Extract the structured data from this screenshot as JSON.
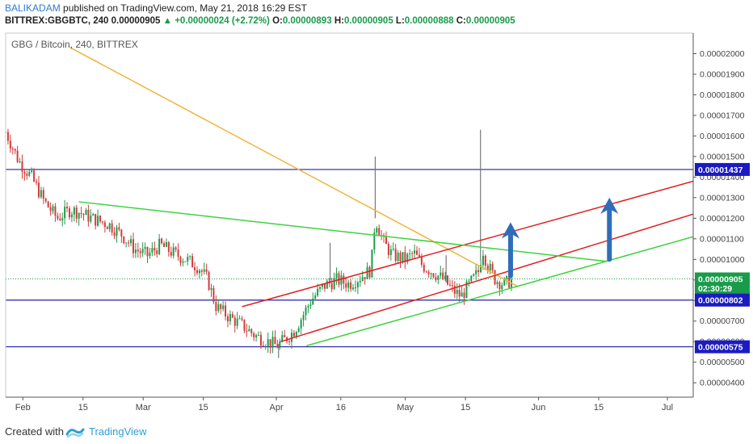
{
  "header": {
    "author": "BALIKADAM",
    "published": "published on TradingView.com, May 21, 2018 16:29 EST",
    "symbol": "BITTREX:GBGBTC, 240",
    "last": "0.00000905",
    "change": "+0.00000024 (+2.72%)",
    "o_label": "O:",
    "o_value": "0.00000893",
    "h_label": "H:",
    "h_value": "0.00000905",
    "l_label": "L:",
    "l_value": "0.00000888",
    "c_label": "C:",
    "c_value": "0.00000905"
  },
  "footer": {
    "created_with": "Created with",
    "brand": "TradingView"
  },
  "colors": {
    "up": "#1a9b4a",
    "down": "#d23c3c",
    "hline": "#1f1fa8",
    "orange": "#f0b33a",
    "red": "#e02020",
    "green": "#3fd23f",
    "arrow": "#2f6db8",
    "accent": "#2e7bcf"
  },
  "chart_data": {
    "type": "candlestick",
    "title": "GBG / Bitcoin, 240, BITTREX",
    "x_ticks": [
      "Feb",
      "15",
      "Mar",
      "15",
      "Apr",
      "16",
      "May",
      "15",
      "Jun",
      "15",
      "Jul"
    ],
    "x_tick_days": [
      0,
      14,
      28,
      42,
      59,
      74,
      89,
      103,
      120,
      134,
      150
    ],
    "x_range_days": [
      -4,
      156
    ],
    "y_ticks": [
      "0.00000400",
      "0.00000500",
      "0.00000600",
      "0.00000700",
      "0.00000800",
      "0.00000900",
      "0.00001000",
      "0.00001100",
      "0.00001200",
      "0.00001300",
      "0.00001400",
      "0.00001500",
      "0.00001600",
      "0.00001700",
      "0.00001800",
      "0.00001900",
      "0.00002000"
    ],
    "ylim": [
      3.3e-06,
      2.1e-05
    ],
    "price_markers": [
      {
        "label": "0.00001437",
        "value": 1.437e-05,
        "kind": "level"
      },
      {
        "label": "0.00000905",
        "value": 9.05e-06,
        "kind": "last"
      },
      {
        "label": "02:30:29",
        "value": 8.59e-06,
        "kind": "timer"
      },
      {
        "label": "0.00000802",
        "value": 8.02e-06,
        "kind": "level"
      },
      {
        "label": "0.00000575",
        "value": 5.75e-06,
        "kind": "level"
      }
    ],
    "horizontal_levels": [
      1.437e-05,
      8.02e-06,
      5.75e-06
    ],
    "last_price": 9.05e-06,
    "trendlines": [
      {
        "name": "descending resistance",
        "color": "orange",
        "x": [
          11,
          115
        ],
        "y": [
          2.03e-05,
          8.7e-06
        ]
      },
      {
        "name": "upper channel",
        "color": "red",
        "x": [
          51,
          156
        ],
        "y": [
          7.7e-06,
          1.38e-05
        ]
      },
      {
        "name": "lower channel",
        "color": "red",
        "x": [
          60,
          156
        ],
        "y": [
          6e-06,
          1.22e-05
        ]
      },
      {
        "name": "rising support",
        "color": "green",
        "x": [
          66,
          156
        ],
        "y": [
          5.8e-06,
          1.11e-05
        ]
      },
      {
        "name": "falling trend",
        "color": "green",
        "x": [
          13,
          136
        ],
        "y": [
          1.28e-05,
          9.9e-06
        ]
      }
    ],
    "arrows": [
      {
        "x": 113.5,
        "y_from": 9.2e-06,
        "y_to": 1.18e-05
      },
      {
        "x": 136.5,
        "y_from": 1e-05,
        "y_to": 1.3e-05
      }
    ],
    "price_path": [
      [
        -4,
        1.62e-05
      ],
      [
        -1,
        1.48e-05
      ],
      [
        2,
        1.4e-05
      ],
      [
        5,
        1.28e-05
      ],
      [
        8,
        1.2e-05
      ],
      [
        11,
        1.24e-05
      ],
      [
        13,
        1.23e-05
      ],
      [
        16,
        1.2e-05
      ],
      [
        20,
        1.17e-05
      ],
      [
        23,
        1.12e-05
      ],
      [
        26,
        1.05e-05
      ],
      [
        29,
        1.02e-05
      ],
      [
        32,
        1.07e-05
      ],
      [
        35,
        1.03e-05
      ],
      [
        38,
        1e-05
      ],
      [
        41,
        9.6e-06
      ],
      [
        43,
        9e-06
      ],
      [
        45,
        7.7e-06
      ],
      [
        48,
        7.2e-06
      ],
      [
        51,
        6.8e-06
      ],
      [
        54,
        6.3e-06
      ],
      [
        57,
        6e-06
      ],
      [
        59,
        5.8e-06
      ],
      [
        61,
        6.1e-06
      ],
      [
        63,
        6.5e-06
      ],
      [
        65,
        7.2e-06
      ],
      [
        67,
        8e-06
      ],
      [
        70,
        8.7e-06
      ],
      [
        73,
        9e-06
      ],
      [
        76,
        8.8e-06
      ],
      [
        79,
        9.2e-06
      ],
      [
        81,
        9.5e-06
      ],
      [
        82,
        1.2e-05
      ],
      [
        84,
        1.08e-05
      ],
      [
        86,
        1.02e-05
      ],
      [
        89,
        1e-05
      ],
      [
        91,
        1.03e-05
      ],
      [
        93,
        9.7e-06
      ],
      [
        96,
        9.3e-06
      ],
      [
        98,
        9e-06
      ],
      [
        100,
        8.5e-06
      ],
      [
        102,
        8.2e-06
      ],
      [
        104,
        8.8e-06
      ],
      [
        106,
        9.4e-06
      ],
      [
        107,
        1.05e-05
      ],
      [
        108,
        9.8e-06
      ],
      [
        110,
        9e-06
      ],
      [
        112,
        8.8e-06
      ],
      [
        114,
        9e-06
      ]
    ],
    "spikes": [
      {
        "x": 82,
        "high": 1.5e-05
      },
      {
        "x": 106.5,
        "high": 1.63e-05
      },
      {
        "x": 71.5,
        "high": 1.08e-05
      },
      {
        "x": 98.5,
        "high": 1.02e-05
      },
      {
        "x": 59.5,
        "low": 5.2e-06
      }
    ]
  }
}
